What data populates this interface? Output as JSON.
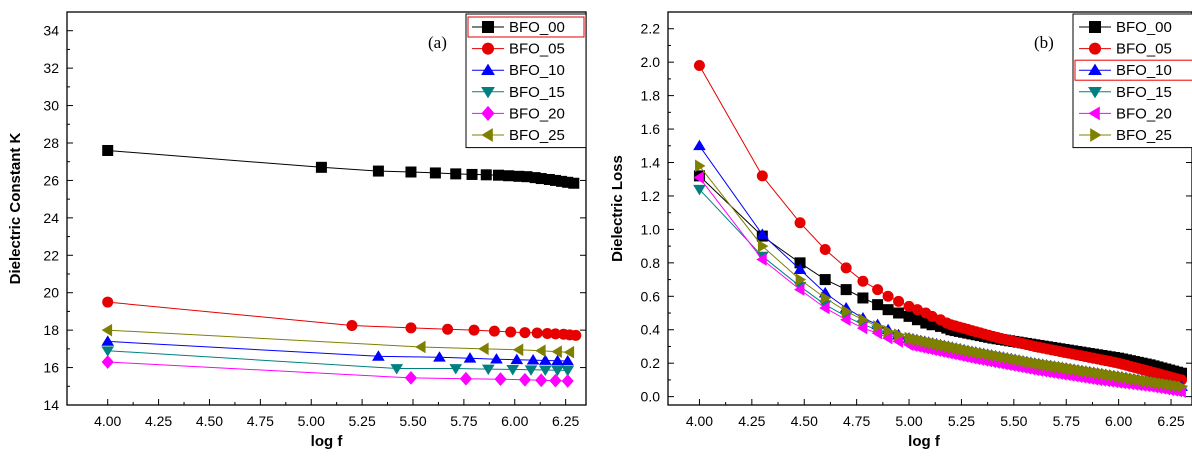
{
  "chart_data": [
    {
      "type": "line",
      "panel_label": "(a)",
      "xlabel": "log f",
      "ylabel": "Dielectric Constant K",
      "xlim": [
        3.8,
        6.35
      ],
      "ylim": [
        14,
        35
      ],
      "xticks": [
        "4.00",
        "4.25",
        "4.50",
        "4.75",
        "5.00",
        "5.25",
        "5.50",
        "5.75",
        "6.00",
        "6.25"
      ],
      "yticks": [
        "14",
        "16",
        "18",
        "20",
        "22",
        "24",
        "26",
        "28",
        "30",
        "32",
        "34"
      ],
      "legend_position": "top-right",
      "series": [
        {
          "name": "BFO_00",
          "color": "#000000",
          "marker": "square",
          "x": [
            4.0,
            5.05,
            5.33,
            5.49,
            5.61,
            5.71,
            5.79,
            5.86,
            5.92,
            5.97,
            6.02,
            6.06,
            6.1,
            6.13,
            6.17,
            6.2,
            6.23,
            6.26,
            6.29
          ],
          "y": [
            27.6,
            26.7,
            26.5,
            26.45,
            26.4,
            26.35,
            26.32,
            26.3,
            26.28,
            26.25,
            26.22,
            26.2,
            26.15,
            26.1,
            26.05,
            26.0,
            25.95,
            25.9,
            25.85
          ]
        },
        {
          "name": "BFO_05",
          "color": "#e60000",
          "marker": "circle",
          "x": [
            4.0,
            5.2,
            5.49,
            5.67,
            5.8,
            5.9,
            5.98,
            6.05,
            6.11,
            6.16,
            6.2,
            6.24,
            6.27,
            6.3
          ],
          "y": [
            19.5,
            18.25,
            18.12,
            18.05,
            18.0,
            17.95,
            17.9,
            17.87,
            17.85,
            17.82,
            17.8,
            17.78,
            17.75,
            17.72
          ]
        },
        {
          "name": "BFO_10",
          "color": "#0000ff",
          "marker": "triangle-up",
          "x": [
            4.0,
            5.33,
            5.63,
            5.78,
            5.91,
            6.01,
            6.09,
            6.15,
            6.21,
            6.26
          ],
          "y": [
            17.4,
            16.6,
            16.55,
            16.5,
            16.45,
            16.42,
            16.4,
            16.38,
            16.36,
            16.35
          ]
        },
        {
          "name": "BFO_15",
          "color": "#008080",
          "marker": "triangle-down",
          "x": [
            4.0,
            5.42,
            5.71,
            5.87,
            5.99,
            6.08,
            6.15,
            6.21,
            6.26
          ],
          "y": [
            16.9,
            15.95,
            15.95,
            15.92,
            15.9,
            15.88,
            15.87,
            15.86,
            15.85
          ]
        },
        {
          "name": "BFO_20",
          "color": "#ff00ff",
          "marker": "diamond",
          "x": [
            4.0,
            5.49,
            5.76,
            5.93,
            6.05,
            6.13,
            6.2,
            6.26
          ],
          "y": [
            16.3,
            15.45,
            15.4,
            15.38,
            15.35,
            15.32,
            15.3,
            15.28
          ]
        },
        {
          "name": "BFO_25",
          "color": "#808000",
          "marker": "triangle-left",
          "x": [
            4.0,
            5.54,
            5.85,
            6.02,
            6.13,
            6.21,
            6.27
          ],
          "y": [
            18.0,
            17.1,
            17.0,
            16.95,
            16.9,
            16.85,
            16.82
          ]
        }
      ]
    },
    {
      "type": "line",
      "panel_label": "(b)",
      "xlabel": "log f",
      "ylabel": "Dielectric Loss",
      "xlim": [
        3.85,
        6.35
      ],
      "ylim": [
        -0.05,
        2.3
      ],
      "xticks": [
        "4.00",
        "4.25",
        "4.50",
        "4.75",
        "5.00",
        "5.25",
        "5.50",
        "5.75",
        "6.00",
        "6.25"
      ],
      "yticks": [
        "0.0",
        "0.2",
        "0.4",
        "0.6",
        "0.8",
        "1.0",
        "1.2",
        "1.4",
        "1.6",
        "1.8",
        "2.0",
        "2.2"
      ],
      "legend_position": "top-right",
      "series": [
        {
          "name": "BFO_00",
          "color": "#000000",
          "marker": "square",
          "x": [
            4.0,
            4.3,
            4.48,
            4.6,
            4.7,
            4.78,
            4.85,
            4.9,
            4.95,
            5.0,
            5.04,
            5.08,
            5.11,
            5.15,
            5.18,
            5.2
          ],
          "y": [
            1.32,
            0.96,
            0.8,
            0.7,
            0.64,
            0.59,
            0.55,
            0.52,
            0.5,
            0.48,
            0.46,
            0.44,
            0.43,
            0.42,
            0.41,
            0.4
          ],
          "tail_x": [
            5.2,
            5.4,
            5.6,
            5.8,
            6.0,
            6.15,
            6.3
          ],
          "tail_y": [
            0.4,
            0.35,
            0.31,
            0.27,
            0.23,
            0.19,
            0.14
          ]
        },
        {
          "name": "BFO_05",
          "color": "#e60000",
          "marker": "circle",
          "x": [
            4.0,
            4.3,
            4.48,
            4.6,
            4.7,
            4.78,
            4.85,
            4.9,
            4.95,
            5.0,
            5.04,
            5.08,
            5.11,
            5.15,
            5.18,
            5.2
          ],
          "y": [
            1.98,
            1.32,
            1.04,
            0.88,
            0.77,
            0.69,
            0.64,
            0.6,
            0.57,
            0.54,
            0.52,
            0.5,
            0.48,
            0.46,
            0.44,
            0.43
          ],
          "tail_x": [
            5.2,
            5.4,
            5.6,
            5.8,
            6.0,
            6.15,
            6.3
          ],
          "tail_y": [
            0.43,
            0.36,
            0.3,
            0.25,
            0.2,
            0.15,
            0.1
          ]
        },
        {
          "name": "BFO_10",
          "color": "#0000ff",
          "marker": "triangle-up",
          "x": [
            4.0,
            4.3,
            4.48,
            4.6,
            4.7,
            4.78,
            4.85,
            4.9,
            4.95,
            5.0
          ],
          "y": [
            1.5,
            0.97,
            0.76,
            0.62,
            0.53,
            0.47,
            0.43,
            0.4,
            0.37,
            0.35
          ],
          "tail_x": [
            5.0,
            5.3,
            5.6,
            5.9,
            6.15,
            6.3
          ],
          "tail_y": [
            0.35,
            0.27,
            0.2,
            0.14,
            0.09,
            0.06
          ]
        },
        {
          "name": "BFO_15",
          "color": "#008080",
          "marker": "triangle-down",
          "x": [
            4.0,
            4.3,
            4.48,
            4.6,
            4.7,
            4.78,
            4.85,
            4.9,
            4.95,
            5.0
          ],
          "y": [
            1.24,
            0.84,
            0.66,
            0.55,
            0.48,
            0.43,
            0.4,
            0.37,
            0.35,
            0.33
          ],
          "tail_x": [
            5.0,
            5.3,
            5.6,
            5.9,
            6.15,
            6.3
          ],
          "tail_y": [
            0.33,
            0.25,
            0.18,
            0.12,
            0.07,
            0.04
          ]
        },
        {
          "name": "BFO_20",
          "color": "#ff00ff",
          "marker": "triangle-left",
          "x": [
            4.0,
            4.3,
            4.48,
            4.6,
            4.7,
            4.78,
            4.85,
            4.9,
            4.95,
            5.0
          ],
          "y": [
            1.31,
            0.82,
            0.64,
            0.53,
            0.46,
            0.41,
            0.38,
            0.35,
            0.33,
            0.31
          ],
          "tail_x": [
            5.0,
            5.3,
            5.6,
            5.9,
            6.15,
            6.3
          ],
          "tail_y": [
            0.31,
            0.23,
            0.16,
            0.1,
            0.06,
            0.03
          ]
        },
        {
          "name": "BFO_25",
          "color": "#808000",
          "marker": "triangle-right",
          "x": [
            4.0,
            4.3,
            4.48,
            4.6,
            4.7,
            4.78,
            4.85,
            4.9,
            4.95,
            5.0
          ],
          "y": [
            1.38,
            0.9,
            0.7,
            0.59,
            0.51,
            0.46,
            0.42,
            0.39,
            0.37,
            0.35
          ],
          "tail_x": [
            5.0,
            5.3,
            5.6,
            5.9,
            6.15,
            6.3
          ],
          "tail_y": [
            0.35,
            0.27,
            0.2,
            0.14,
            0.09,
            0.06
          ]
        }
      ]
    }
  ]
}
